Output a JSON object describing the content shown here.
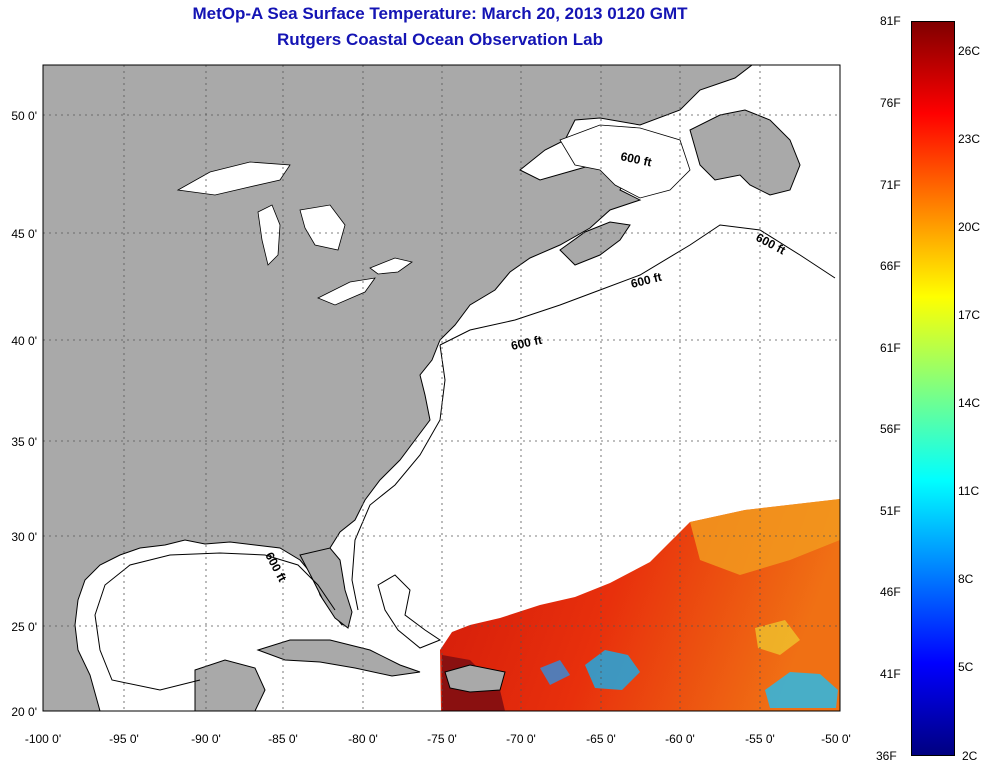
{
  "title": {
    "line1": "MetOp-A Sea Surface Temperature:  March 20, 2013 0120 GMT",
    "line2": "Rutgers Coastal Ocean Observation Lab"
  },
  "map": {
    "lon_labels": [
      "-100 0'",
      "-95 0'",
      "-90 0'",
      "-85 0'",
      "-80 0'",
      "-75 0'",
      "-70 0'",
      "-65 0'",
      "-60 0'",
      "-55 0'",
      "-50 0'"
    ],
    "lat_labels": [
      "50 0'",
      "45 0'",
      "40 0'",
      "35 0'",
      "30 0'",
      "25 0'",
      "20 0'"
    ],
    "isobath_labels": [
      "600 ft",
      "600 ft",
      "600 ft",
      "600 ft",
      "600 ft"
    ],
    "colors": {
      "land": "#a9a9a9",
      "ocean_no_data": "#ffffff",
      "grid": "#444444"
    }
  },
  "colorbar": {
    "fahrenheit_labels": [
      "81F",
      "76F",
      "71F",
      "66F",
      "61F",
      "56F",
      "51F",
      "46F",
      "41F",
      "36F"
    ],
    "celsius_labels": [
      "26C",
      "23C",
      "20C",
      "17C",
      "14C",
      "11C",
      "8C",
      "5C",
      "2C"
    ],
    "colors": [
      "#800000",
      "#ff0000",
      "#ff8000",
      "#ffff00",
      "#80ff80",
      "#00ffff",
      "#0080ff",
      "#0000ff",
      "#000080"
    ]
  }
}
